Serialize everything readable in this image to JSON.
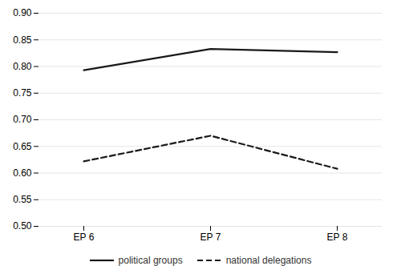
{
  "chart_data": {
    "type": "line",
    "categories": [
      "EP 6",
      "EP 7",
      "EP 8"
    ],
    "series": [
      {
        "name": "political groups",
        "color": "#1a1a1a",
        "line_style": "solid",
        "values": [
          0.793,
          0.833,
          0.827
        ]
      },
      {
        "name": "national delegations",
        "color": "#1a1a1a",
        "line_style": "dashed",
        "values": [
          0.622,
          0.67,
          0.608
        ]
      }
    ],
    "ylim": [
      0.5,
      0.9
    ],
    "yticks": [
      {
        "value": 0.5,
        "label": "0.50"
      },
      0.55,
      {
        "value": 0.6,
        "label": "0.60"
      },
      0.65,
      {
        "value": 0.7,
        "label": "0.70"
      },
      0.75,
      {
        "value": 0.8,
        "label": "0.80"
      },
      0.85,
      {
        "value": 0.9,
        "label": "0.90"
      }
    ],
    "grid": true,
    "legend": "bottom"
  }
}
